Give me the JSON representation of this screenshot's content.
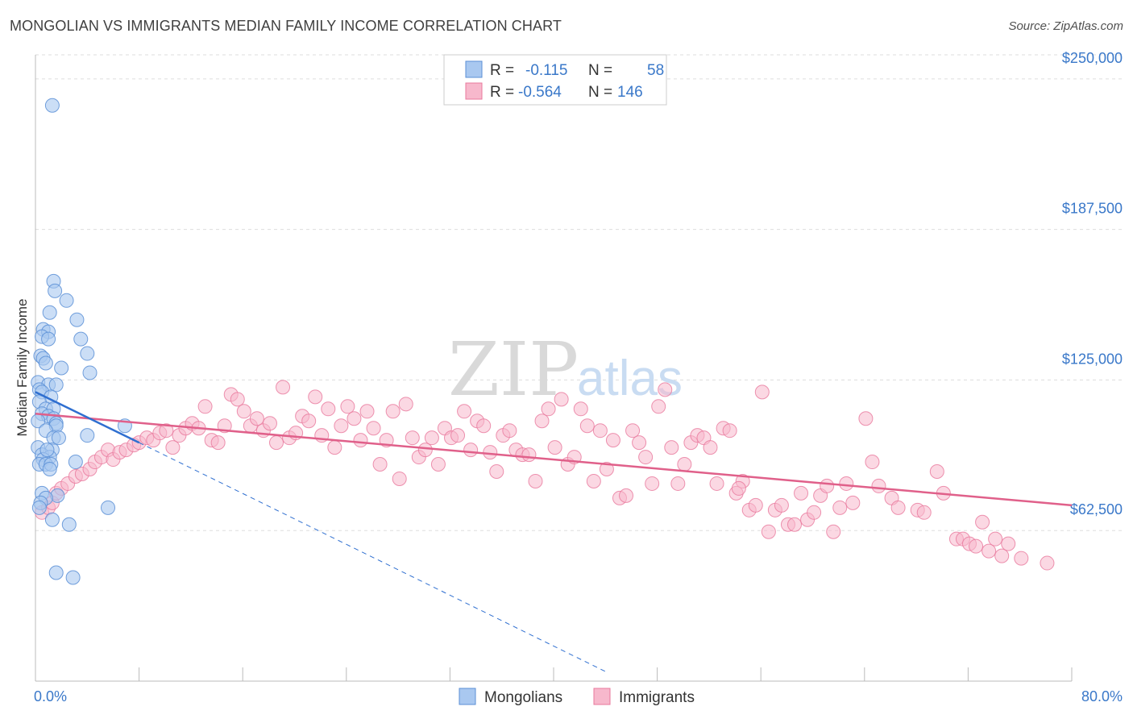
{
  "title": "MONGOLIAN VS IMMIGRANTS MEDIAN FAMILY INCOME CORRELATION CHART",
  "source": "Source: ZipAtlas.com",
  "watermark": {
    "zip": "ZIP",
    "atlas": "atlas"
  },
  "colors": {
    "mongolians_fill": "#a9c8f0",
    "mongolians_stroke": "#5b8fd6",
    "mongolians_line": "#2f6fd0",
    "immigrants_fill": "#f7b8cc",
    "immigrants_stroke": "#e8789c",
    "immigrants_line": "#e0608a",
    "tick_text": "#3a78c9",
    "grid": "#dddddd"
  },
  "stats": {
    "rows": [
      {
        "r_label": "R =",
        "r_value": "-0.115",
        "n_label": "N =",
        "n_value": "58"
      },
      {
        "r_label": "R =",
        "r_value": "-0.564",
        "n_label": "N =",
        "n_value": "146"
      }
    ]
  },
  "legend": {
    "mongolians": "Mongolians",
    "immigrants": "Immigrants"
  },
  "chart_data": {
    "type": "scatter",
    "title": "MONGOLIAN VS IMMIGRANTS MEDIAN FAMILY INCOME CORRELATION CHART",
    "xlabel": "",
    "ylabel": "Median Family Income",
    "xlim": [
      0,
      80
    ],
    "ylim": [
      0,
      262000
    ],
    "x_tick_labels": [
      "0.0%",
      "80.0%"
    ],
    "y_ticks": [
      62500,
      125000,
      187500,
      250000
    ],
    "y_tick_labels": [
      "$62,500",
      "$125,000",
      "$187,500",
      "$250,000"
    ],
    "grid": true,
    "legend_position": "bottom-center",
    "series": [
      {
        "name": "Mongolians",
        "trend": {
          "x0": 0.0,
          "y0": 120000,
          "x1": 8.0,
          "y1": 99000,
          "dashed_to_x": 44.0,
          "dashed_to_y": 4000
        },
        "points": [
          [
            1.3,
            239000
          ],
          [
            1.4,
            166000
          ],
          [
            1.5,
            162000
          ],
          [
            2.4,
            158000
          ],
          [
            1.1,
            153000
          ],
          [
            3.2,
            150000
          ],
          [
            0.6,
            146000
          ],
          [
            1.0,
            145000
          ],
          [
            0.5,
            143000
          ],
          [
            3.5,
            142000
          ],
          [
            1.0,
            142000
          ],
          [
            4.0,
            136000
          ],
          [
            0.4,
            135000
          ],
          [
            0.6,
            134000
          ],
          [
            0.8,
            132000
          ],
          [
            2.0,
            130000
          ],
          [
            4.2,
            128000
          ],
          [
            0.2,
            124000
          ],
          [
            1.0,
            123000
          ],
          [
            1.6,
            123000
          ],
          [
            0.3,
            121000
          ],
          [
            0.5,
            120000
          ],
          [
            1.2,
            118000
          ],
          [
            0.3,
            116000
          ],
          [
            0.8,
            113000
          ],
          [
            1.4,
            113000
          ],
          [
            0.5,
            111000
          ],
          [
            1.0,
            110000
          ],
          [
            1.4,
            109000
          ],
          [
            0.2,
            108000
          ],
          [
            1.6,
            107000
          ],
          [
            1.6,
            106000
          ],
          [
            6.9,
            106000
          ],
          [
            0.8,
            104000
          ],
          [
            4.0,
            102000
          ],
          [
            1.4,
            101000
          ],
          [
            1.8,
            101000
          ],
          [
            0.2,
            97000
          ],
          [
            1.3,
            96000
          ],
          [
            0.5,
            94000
          ],
          [
            1.1,
            93000
          ],
          [
            0.6,
            92000
          ],
          [
            3.1,
            91000
          ],
          [
            0.3,
            90000
          ],
          [
            0.8,
            90000
          ],
          [
            1.2,
            90000
          ],
          [
            0.5,
            78000
          ],
          [
            1.7,
            77000
          ],
          [
            0.8,
            76000
          ],
          [
            0.4,
            74000
          ],
          [
            5.6,
            72000
          ],
          [
            1.3,
            67000
          ],
          [
            2.6,
            65000
          ],
          [
            1.6,
            45000
          ],
          [
            2.9,
            43000
          ],
          [
            0.3,
            72000
          ],
          [
            1.1,
            88000
          ],
          [
            0.9,
            96000
          ]
        ]
      },
      {
        "name": "Immigrants",
        "trend": {
          "x0": 0.0,
          "y0": 111000,
          "x1": 80.0,
          "y1": 73000
        },
        "points": [
          [
            0.5,
            70000
          ],
          [
            1.0,
            72000
          ],
          [
            1.3,
            74000
          ],
          [
            1.6,
            78000
          ],
          [
            2.0,
            80000
          ],
          [
            2.5,
            82000
          ],
          [
            3.1,
            85000
          ],
          [
            3.6,
            86000
          ],
          [
            4.2,
            88000
          ],
          [
            4.6,
            91000
          ],
          [
            5.1,
            93000
          ],
          [
            5.6,
            96000
          ],
          [
            6.0,
            92000
          ],
          [
            6.5,
            95000
          ],
          [
            7.0,
            96000
          ],
          [
            7.6,
            98000
          ],
          [
            8.0,
            99000
          ],
          [
            8.6,
            101000
          ],
          [
            9.1,
            100000
          ],
          [
            9.6,
            103000
          ],
          [
            10.1,
            104000
          ],
          [
            10.6,
            97000
          ],
          [
            11.1,
            102000
          ],
          [
            11.6,
            105000
          ],
          [
            12.1,
            107000
          ],
          [
            12.6,
            105000
          ],
          [
            13.1,
            114000
          ],
          [
            13.6,
            100000
          ],
          [
            14.1,
            99000
          ],
          [
            14.6,
            106000
          ],
          [
            15.1,
            119000
          ],
          [
            15.6,
            117000
          ],
          [
            16.1,
            112000
          ],
          [
            16.6,
            106000
          ],
          [
            17.1,
            109000
          ],
          [
            17.6,
            104000
          ],
          [
            18.1,
            107000
          ],
          [
            18.6,
            99000
          ],
          [
            19.1,
            122000
          ],
          [
            19.6,
            101000
          ],
          [
            20.1,
            103000
          ],
          [
            20.6,
            110000
          ],
          [
            21.1,
            108000
          ],
          [
            21.6,
            118000
          ],
          [
            22.1,
            102000
          ],
          [
            22.6,
            113000
          ],
          [
            23.1,
            97000
          ],
          [
            23.6,
            106000
          ],
          [
            24.1,
            114000
          ],
          [
            24.6,
            109000
          ],
          [
            25.1,
            100000
          ],
          [
            25.6,
            112000
          ],
          [
            26.1,
            105000
          ],
          [
            26.6,
            90000
          ],
          [
            27.1,
            100000
          ],
          [
            27.6,
            112000
          ],
          [
            28.1,
            84000
          ],
          [
            28.6,
            115000
          ],
          [
            29.1,
            101000
          ],
          [
            29.6,
            93000
          ],
          [
            30.1,
            96000
          ],
          [
            30.6,
            101000
          ],
          [
            31.1,
            90000
          ],
          [
            31.6,
            105000
          ],
          [
            32.1,
            101000
          ],
          [
            32.6,
            102000
          ],
          [
            33.1,
            112000
          ],
          [
            33.6,
            96000
          ],
          [
            34.1,
            108000
          ],
          [
            34.6,
            106000
          ],
          [
            35.1,
            95000
          ],
          [
            35.6,
            87000
          ],
          [
            36.1,
            102000
          ],
          [
            36.6,
            104000
          ],
          [
            37.1,
            96000
          ],
          [
            37.6,
            94000
          ],
          [
            38.1,
            94000
          ],
          [
            38.6,
            83000
          ],
          [
            39.1,
            108000
          ],
          [
            39.6,
            113000
          ],
          [
            40.1,
            97000
          ],
          [
            40.6,
            117000
          ],
          [
            41.1,
            90000
          ],
          [
            41.6,
            93000
          ],
          [
            42.1,
            113000
          ],
          [
            42.6,
            106000
          ],
          [
            43.1,
            83000
          ],
          [
            43.6,
            104000
          ],
          [
            44.1,
            88000
          ],
          [
            44.6,
            100000
          ],
          [
            45.1,
            76000
          ],
          [
            45.6,
            77000
          ],
          [
            46.1,
            104000
          ],
          [
            46.6,
            99000
          ],
          [
            47.1,
            93000
          ],
          [
            47.6,
            82000
          ],
          [
            48.1,
            114000
          ],
          [
            48.6,
            121000
          ],
          [
            49.1,
            97000
          ],
          [
            49.6,
            82000
          ],
          [
            50.1,
            90000
          ],
          [
            50.6,
            99000
          ],
          [
            51.1,
            102000
          ],
          [
            51.6,
            101000
          ],
          [
            52.1,
            97000
          ],
          [
            52.6,
            82000
          ],
          [
            53.1,
            105000
          ],
          [
            53.6,
            104000
          ],
          [
            54.1,
            78000
          ],
          [
            54.6,
            83000
          ],
          [
            55.1,
            71000
          ],
          [
            55.6,
            73000
          ],
          [
            56.1,
            120000
          ],
          [
            56.6,
            62000
          ],
          [
            57.1,
            71000
          ],
          [
            57.6,
            73000
          ],
          [
            58.1,
            65000
          ],
          [
            58.6,
            65000
          ],
          [
            59.1,
            78000
          ],
          [
            59.6,
            67000
          ],
          [
            60.1,
            70000
          ],
          [
            60.6,
            77000
          ],
          [
            61.1,
            81000
          ],
          [
            61.6,
            62000
          ],
          [
            62.1,
            72000
          ],
          [
            62.6,
            82000
          ],
          [
            63.1,
            74000
          ],
          [
            64.1,
            109000
          ],
          [
            64.6,
            91000
          ],
          [
            65.1,
            81000
          ],
          [
            66.1,
            76000
          ],
          [
            66.6,
            72000
          ],
          [
            68.1,
            71000
          ],
          [
            68.6,
            70000
          ],
          [
            69.6,
            87000
          ],
          [
            70.1,
            78000
          ],
          [
            71.1,
            59000
          ],
          [
            71.6,
            59000
          ],
          [
            72.1,
            57000
          ],
          [
            72.6,
            56000
          ],
          [
            73.1,
            66000
          ],
          [
            73.6,
            54000
          ],
          [
            74.1,
            59000
          ],
          [
            74.6,
            52000
          ],
          [
            75.1,
            57000
          ],
          [
            76.1,
            51000
          ],
          [
            78.1,
            49000
          ],
          [
            54.3,
            80000
          ]
        ]
      }
    ]
  }
}
